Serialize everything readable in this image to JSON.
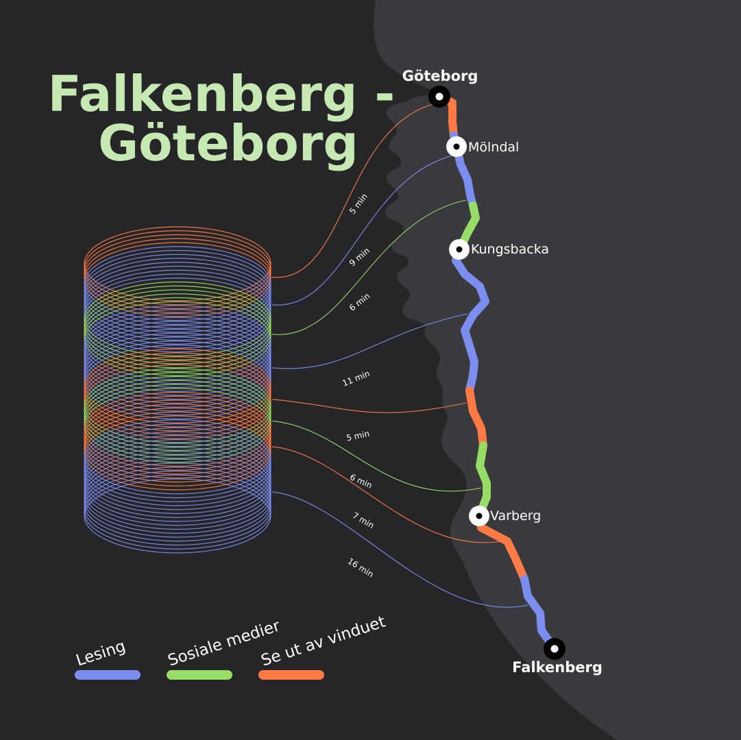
{
  "title": {
    "line1": "Falkenberg -",
    "line2": "Göteborg"
  },
  "colors": {
    "background": "#262628",
    "land": "#3a3a3e",
    "reading": "#7b8ef0",
    "social": "#96dc66",
    "window": "#ff7a45",
    "title": "#c6e8b2"
  },
  "stations": [
    {
      "name": "Göteborg",
      "major": true
    },
    {
      "name": "Mölndal",
      "major": false
    },
    {
      "name": "Kungsbacka",
      "major": false
    },
    {
      "name": "Varberg",
      "major": false
    },
    {
      "name": "Falkenberg",
      "major": true
    }
  ],
  "segments": [
    {
      "activity": "window",
      "minutes": 5,
      "label": "5 min"
    },
    {
      "activity": "reading",
      "minutes": 9,
      "label": "9 min"
    },
    {
      "activity": "social",
      "minutes": 6,
      "label": "6 min"
    },
    {
      "activity": "reading",
      "minutes": 11,
      "label": "11 min"
    },
    {
      "activity": "window",
      "minutes": 5,
      "label": "5 min"
    },
    {
      "activity": "social",
      "minutes": 6,
      "label": "6 min"
    },
    {
      "activity": "window",
      "minutes": 7,
      "label": "7 min"
    },
    {
      "activity": "reading",
      "minutes": 16,
      "label": "16 min"
    }
  ],
  "legend": [
    {
      "activity": "reading",
      "label": "Lesing"
    },
    {
      "activity": "social",
      "label": "Sosiale medier"
    },
    {
      "activity": "window",
      "label": "Se ut av vinduet"
    }
  ]
}
